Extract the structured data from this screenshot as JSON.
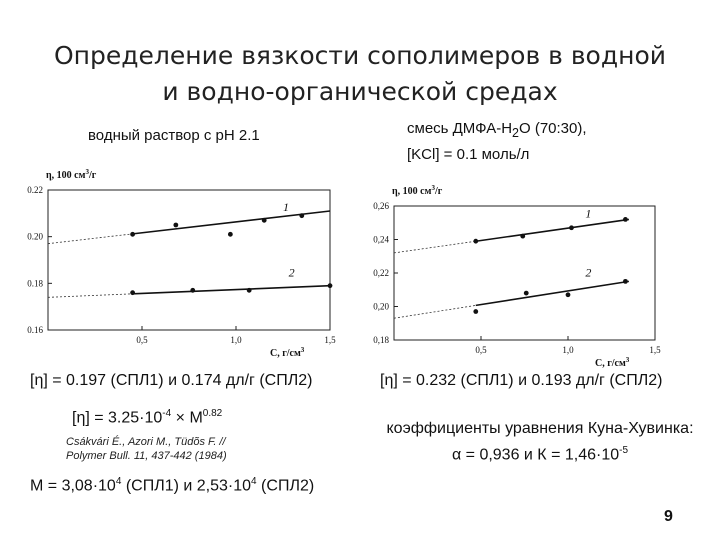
{
  "slide": {
    "title_line1": "Определение вязкости сополимеров в водной",
    "title_line2": "и водно-органической средах",
    "left_caption": "водный раствор с pH 2.1",
    "right_caption_line1_a": "смесь ДМФА-H",
    "right_caption_line1_sub": "2",
    "right_caption_line1_b": "O (70:30),",
    "right_caption_line2": "[KCl] = 0.1 моль/л",
    "left_result": "[η] = 0.197 (СПЛ1) и 0.174 дл/г (СПЛ2)",
    "right_result": "[η] = 0.232 (СПЛ1) и 0.193 дл/г (СПЛ2)",
    "formula_a": "[η] = 3.25·10",
    "formula_exp1": "-4",
    "formula_b": " × M",
    "formula_exp2": "0.82",
    "citation_line1": "Csákvári É., Azori M., Tüdõs F. //",
    "citation_line2": "Polymer Bull. 11, 437-442 (1984)",
    "kuhn_line1": "коэффициенты уравнения Куна-Хувинка:",
    "kuhn_line2_a": "α = 0,936 и К = 1,46·10",
    "kuhn_line2_exp": "-5",
    "mass_a": "M = 3,08·10",
    "mass_exp1": "4",
    "mass_b": " (СПЛ1) и 2,53·10",
    "mass_exp2": "4",
    "mass_c": " (СПЛ2)",
    "page_number": "9"
  },
  "chart_data": [
    {
      "type": "scatter",
      "ylabel_a": "η, 100 см",
      "ylabel_exp": "3",
      "ylabel_b": "/г",
      "xlabel": "C, г/см",
      "xlabel_exp": "3",
      "xlim": [
        0,
        1.5
      ],
      "ylim": [
        0.16,
        0.22
      ],
      "xticks": [
        0.5,
        1.0,
        1.5
      ],
      "xtick_labels": [
        "0,5",
        "1,0",
        "1,5"
      ],
      "yticks": [
        0.16,
        0.18,
        0.2,
        0.22
      ],
      "ytick_labels": [
        "0.16",
        "0.18",
        "0.20",
        "0.22"
      ],
      "series": [
        {
          "name": "1",
          "x": [
            0.45,
            0.68,
            0.97,
            1.15,
            1.35
          ],
          "y": [
            0.201,
            0.205,
            0.201,
            0.207,
            0.209
          ],
          "fit": [
            [
              0.0,
              0.197
            ],
            [
              1.5,
              0.211
            ]
          ],
          "fit_solid_from": 0.45
        },
        {
          "name": "2",
          "x": [
            0.45,
            0.77,
            1.07,
            1.5
          ],
          "y": [
            0.176,
            0.177,
            0.177,
            0.179
          ],
          "fit": [
            [
              0.0,
              0.174
            ],
            [
              1.5,
              0.179
            ]
          ],
          "fit_solid_from": 0.45
        }
      ],
      "label_positions": [
        [
          1.25,
          0.211
        ],
        [
          1.28,
          0.183
        ]
      ]
    },
    {
      "type": "scatter",
      "ylabel_a": "η, 100 см",
      "ylabel_exp": "3",
      "ylabel_b": "/г",
      "xlabel": "C, г/см",
      "xlabel_exp": "3",
      "xlim": [
        0,
        1.5
      ],
      "ylim": [
        0.18,
        0.26
      ],
      "xticks": [
        0.5,
        1.0,
        1.5
      ],
      "xtick_labels": [
        "0,5",
        "1,0",
        "1,5"
      ],
      "yticks": [
        0.18,
        0.2,
        0.22,
        0.24,
        0.26
      ],
      "ytick_labels": [
        "0,18",
        "0,20",
        "0,22",
        "0,24",
        "0,26"
      ],
      "series": [
        {
          "name": "1",
          "x": [
            0.47,
            0.74,
            1.02,
            1.33
          ],
          "y": [
            0.239,
            0.242,
            0.247,
            0.252
          ],
          "fit": [
            [
              0.0,
              0.232
            ],
            [
              1.35,
              0.252
            ]
          ],
          "fit_solid_from": 0.47
        },
        {
          "name": "2",
          "x": [
            0.47,
            0.76,
            1.0,
            1.33
          ],
          "y": [
            0.197,
            0.208,
            0.207,
            0.215
          ],
          "fit": [
            [
              0.0,
              0.193
            ],
            [
              1.35,
              0.215
            ]
          ],
          "fit_solid_from": 0.47
        }
      ],
      "label_positions": [
        [
          1.1,
          0.253
        ],
        [
          1.1,
          0.218
        ]
      ]
    }
  ]
}
